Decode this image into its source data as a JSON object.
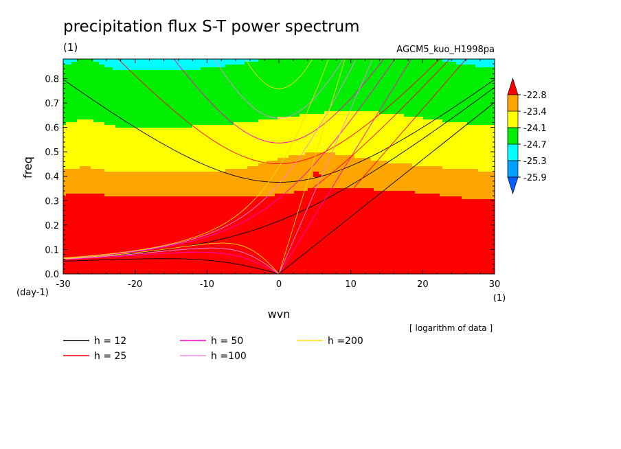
{
  "chart_data": {
    "type": "heatmap",
    "title": "precipitation flux S-T power spectrum",
    "unit_label": "(1)",
    "model_label": "AGCM5_kuo_H1998pa",
    "xlabel": "wvn",
    "ylabel": "freq",
    "y_unit": "(day-1)",
    "x_unit": "(1)",
    "xlim": [
      -30,
      30
    ],
    "ylim": [
      0,
      0.88
    ],
    "xticks": [
      -30,
      -20,
      -10,
      0,
      10,
      20,
      30
    ],
    "yticks": [
      0.0,
      0.1,
      0.2,
      0.3,
      0.4,
      0.5,
      0.6,
      0.7,
      0.8
    ],
    "note": "[ logarithm of data ]",
    "colorbar": {
      "levels": [
        "-22.8",
        "-23.4",
        "-24.1",
        "-24.7",
        "-25.3",
        "-25.9"
      ],
      "colors": [
        "#ff0000",
        "#ffa500",
        "#ffff00",
        "#00ee00",
        "#00ffff",
        "#00a0ff",
        "#0060ff"
      ]
    },
    "dispersion_curves": [
      {
        "label": "h = 12",
        "color": "#000000",
        "h": 12
      },
      {
        "label": "h = 25",
        "color": "#ff0000",
        "h": 25
      },
      {
        "label": "h = 50",
        "color": "#ff00cc",
        "h": 50
      },
      {
        "label": "h =100",
        "color": "#ee88ee",
        "h": 100
      },
      {
        "label": "h =200",
        "color": "#ffdd00",
        "h": 200
      }
    ]
  }
}
